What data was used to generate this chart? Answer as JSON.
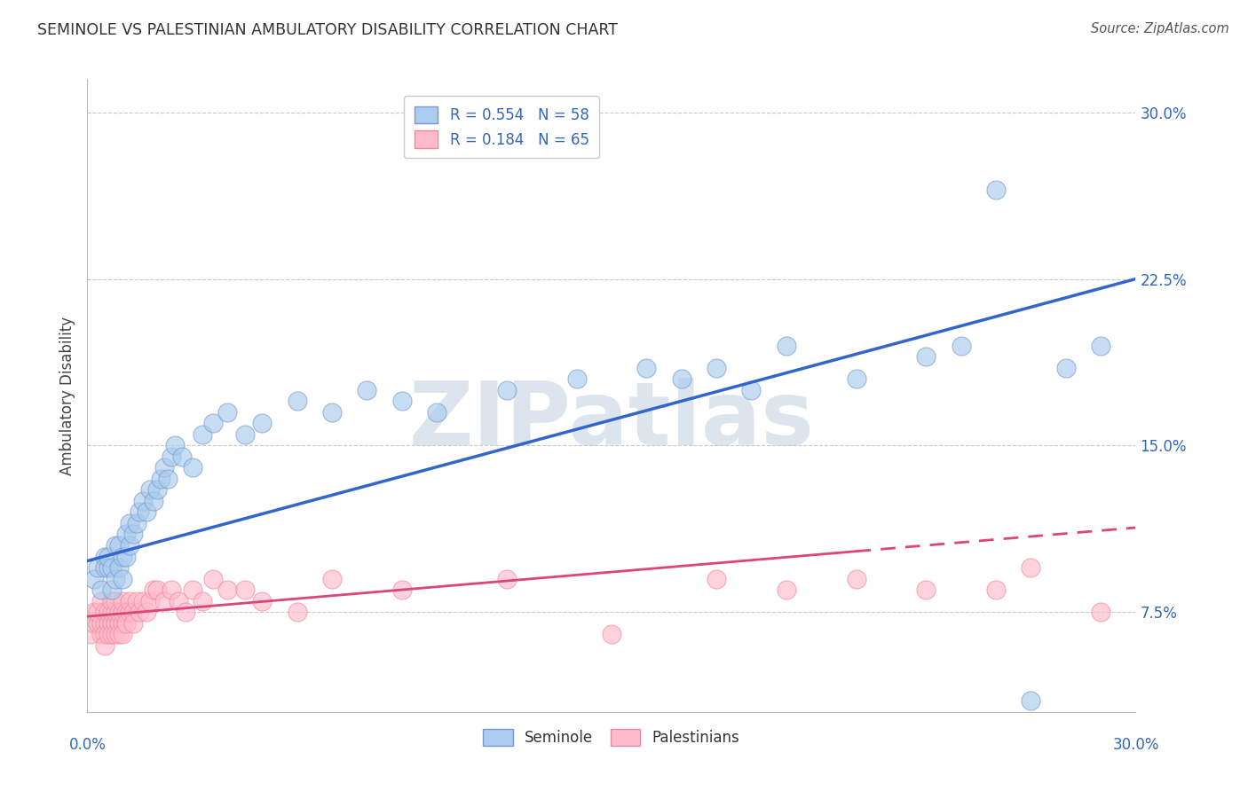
{
  "title": "SEMINOLE VS PALESTINIAN AMBULATORY DISABILITY CORRELATION CHART",
  "source": "Source: ZipAtlas.com",
  "ylabel": "Ambulatory Disability",
  "xlim": [
    0.0,
    0.3
  ],
  "ylim": [
    0.03,
    0.315
  ],
  "yticks": [
    0.075,
    0.15,
    0.225,
    0.3
  ],
  "ytick_labels": [
    "7.5%",
    "15.0%",
    "22.5%",
    "30.0%"
  ],
  "seminole_color_face": "#AACCEE",
  "seminole_color_edge": "#7799CC",
  "palestinian_color_face": "#FFBBCC",
  "palestinian_color_edge": "#EE8899",
  "blue_line_color": "#3366CC",
  "pink_line_color": "#DD4477",
  "seminole_R": 0.554,
  "seminole_N": 58,
  "palestinian_R": 0.184,
  "palestinian_N": 65,
  "watermark_text": "ZIPatlas",
  "legend_top_label_1": "R = 0.554   N = 58",
  "legend_top_label_2": "R = 0.184   N = 65",
  "legend_bottom_labels": [
    "Seminole",
    "Palestinians"
  ],
  "blue_line_x0": 0.0,
  "blue_line_y0": 0.098,
  "blue_line_x1": 0.3,
  "blue_line_y1": 0.225,
  "pink_line_x0": 0.0,
  "pink_line_y0": 0.073,
  "pink_line_x1": 0.3,
  "pink_line_y1": 0.113,
  "seminole_x": [
    0.002,
    0.003,
    0.004,
    0.005,
    0.005,
    0.006,
    0.006,
    0.007,
    0.007,
    0.008,
    0.008,
    0.009,
    0.009,
    0.01,
    0.01,
    0.011,
    0.011,
    0.012,
    0.012,
    0.013,
    0.014,
    0.015,
    0.016,
    0.017,
    0.018,
    0.019,
    0.02,
    0.021,
    0.022,
    0.023,
    0.024,
    0.025,
    0.027,
    0.03,
    0.033,
    0.036,
    0.04,
    0.045,
    0.05,
    0.06,
    0.07,
    0.08,
    0.09,
    0.1,
    0.12,
    0.14,
    0.16,
    0.17,
    0.18,
    0.19,
    0.2,
    0.22,
    0.24,
    0.25,
    0.26,
    0.27,
    0.28,
    0.29
  ],
  "seminole_y": [
    0.09,
    0.095,
    0.085,
    0.1,
    0.095,
    0.095,
    0.1,
    0.085,
    0.095,
    0.09,
    0.105,
    0.095,
    0.105,
    0.09,
    0.1,
    0.1,
    0.11,
    0.105,
    0.115,
    0.11,
    0.115,
    0.12,
    0.125,
    0.12,
    0.13,
    0.125,
    0.13,
    0.135,
    0.14,
    0.135,
    0.145,
    0.15,
    0.145,
    0.14,
    0.155,
    0.16,
    0.165,
    0.155,
    0.16,
    0.17,
    0.165,
    0.175,
    0.17,
    0.165,
    0.175,
    0.18,
    0.185,
    0.18,
    0.185,
    0.175,
    0.195,
    0.18,
    0.19,
    0.195,
    0.265,
    0.035,
    0.185,
    0.195
  ],
  "palestinian_x": [
    0.001,
    0.002,
    0.002,
    0.003,
    0.003,
    0.004,
    0.004,
    0.004,
    0.005,
    0.005,
    0.005,
    0.005,
    0.006,
    0.006,
    0.006,
    0.007,
    0.007,
    0.007,
    0.007,
    0.008,
    0.008,
    0.008,
    0.008,
    0.009,
    0.009,
    0.009,
    0.01,
    0.01,
    0.01,
    0.01,
    0.011,
    0.011,
    0.012,
    0.012,
    0.013,
    0.013,
    0.014,
    0.015,
    0.016,
    0.017,
    0.018,
    0.019,
    0.02,
    0.022,
    0.024,
    0.026,
    0.028,
    0.03,
    0.033,
    0.036,
    0.04,
    0.045,
    0.05,
    0.06,
    0.07,
    0.09,
    0.12,
    0.15,
    0.18,
    0.2,
    0.22,
    0.24,
    0.26,
    0.27,
    0.29
  ],
  "palestinian_y": [
    0.065,
    0.07,
    0.075,
    0.07,
    0.075,
    0.065,
    0.07,
    0.08,
    0.07,
    0.075,
    0.065,
    0.06,
    0.07,
    0.075,
    0.065,
    0.07,
    0.075,
    0.065,
    0.08,
    0.07,
    0.075,
    0.065,
    0.08,
    0.07,
    0.075,
    0.065,
    0.07,
    0.075,
    0.065,
    0.08,
    0.075,
    0.07,
    0.075,
    0.08,
    0.075,
    0.07,
    0.08,
    0.075,
    0.08,
    0.075,
    0.08,
    0.085,
    0.085,
    0.08,
    0.085,
    0.08,
    0.075,
    0.085,
    0.08,
    0.09,
    0.085,
    0.085,
    0.08,
    0.075,
    0.09,
    0.085,
    0.09,
    0.065,
    0.09,
    0.085,
    0.09,
    0.085,
    0.085,
    0.095,
    0.075
  ]
}
